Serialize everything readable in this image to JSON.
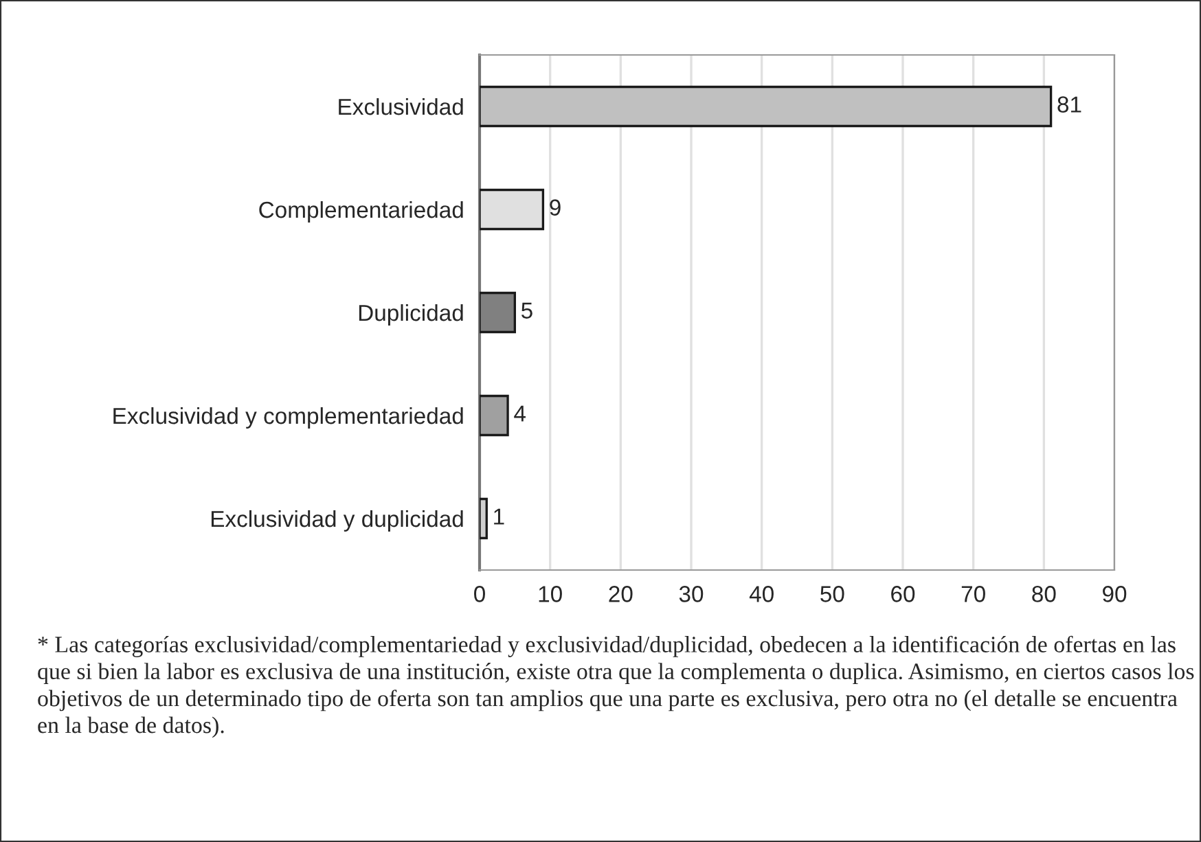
{
  "chart_data": {
    "type": "bar",
    "orientation": "horizontal",
    "categories": [
      "Exclusividad",
      "Complementariedad",
      "Duplicidad",
      "Exclusividad y complementariedad",
      "Exclusividad y duplicidad"
    ],
    "values": [
      81,
      9,
      5,
      4,
      1
    ],
    "colors": [
      "#c0c0c0",
      "#e0e0e0",
      "#808080",
      "#a0a0a0",
      "#d0d0d0"
    ],
    "data_labels": true,
    "xlim": [
      0,
      90
    ],
    "xticks": [
      0,
      10,
      20,
      30,
      40,
      50,
      60,
      70,
      80,
      90
    ],
    "grid": "x",
    "legend": false,
    "annotations": [
      "* Las categorías exclusividad/complementariedad y exclusividad/duplicidad, obedecen a la identificación de ofertas en las que si bien la labor es exclusiva de una institución, existe otra que la complementa o duplica. Asimismo, en ciertos casos los objetivos de un determinado tipo de oferta son tan amplios que una parte es exclusiva, pero otra no (el detalle se encuentra en la base de datos)."
    ]
  }
}
